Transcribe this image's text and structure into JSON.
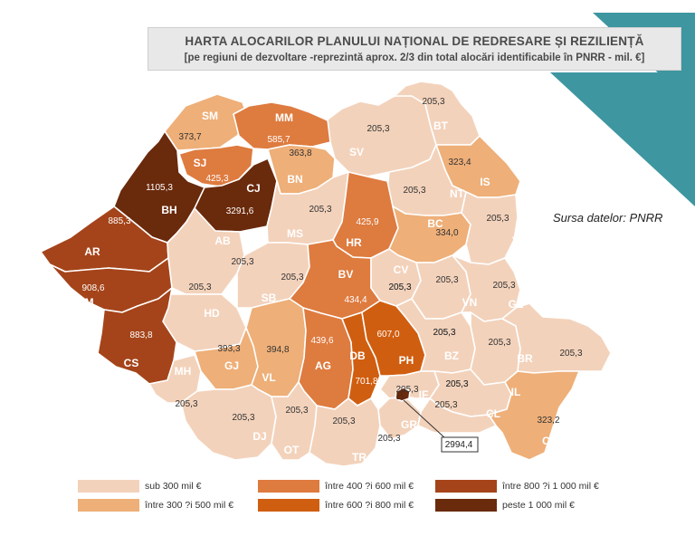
{
  "title": {
    "line1": "HARTA ALOCARILOR PLANULUI NAȚIONAL DE REDRESARE ȘI REZILIENȚĂ",
    "line2": "[pe regiuni de dezvoltare -reprezintă aprox. 2/3 din total alocări identificabile în PNRR - mil. €]"
  },
  "source": "Sursa datelor: PNRR",
  "colors": {
    "sub300": "#f3d2bb",
    "r300_500": "#eeaf78",
    "r400_600": "#de7b3f",
    "r600_800": "#d05e10",
    "r800_1000": "#a5441a",
    "peste1000": "#6a2a0c",
    "teal": "#3e96a0",
    "border": "#ffffff"
  },
  "legend": [
    {
      "label": "sub 300 mil €",
      "color_key": "sub300"
    },
    {
      "label": "între 300 ?i 500 mil €",
      "color_key": "r300_500"
    },
    {
      "label": "între 400 ?i 600 mil €",
      "color_key": "r400_600"
    },
    {
      "label": "între 600 ?i 800 mil €",
      "color_key": "r600_800"
    },
    {
      "label": "între 800 ?i 1 000 mil €",
      "color_key": "r800_1000"
    },
    {
      "label": "peste 1 000 mil €",
      "color_key": "peste1000"
    }
  ],
  "counties": [
    {
      "code": "SM",
      "value": "373,7",
      "color_key": "r300_500"
    },
    {
      "code": "MM",
      "value": "585,7",
      "color_key": "r400_600"
    },
    {
      "code": "SJ",
      "value": "425,3",
      "color_key": "r400_600"
    },
    {
      "code": "CJ",
      "value": "3291,6",
      "color_key": "peste1000"
    },
    {
      "code": "BH",
      "value": "1105,3",
      "color_key": "peste1000"
    },
    {
      "code": "BN",
      "value": "363,8",
      "color_key": "r300_500"
    },
    {
      "code": "SV",
      "value": "205,3",
      "color_key": "sub300"
    },
    {
      "code": "BT",
      "value": "205,3",
      "color_key": "sub300"
    },
    {
      "code": "IS",
      "value": "323,4",
      "color_key": "r300_500"
    },
    {
      "code": "NT",
      "value": "205,3",
      "color_key": "sub300"
    },
    {
      "code": "MS",
      "value": "205,3",
      "color_key": "sub300"
    },
    {
      "code": "HR",
      "value": "425,9",
      "color_key": "r400_600"
    },
    {
      "code": "BC",
      "value": "334,0",
      "color_key": "r300_500"
    },
    {
      "code": "VS",
      "value": "205,3",
      "color_key": "sub300"
    },
    {
      "code": "AR",
      "value": "885,3",
      "color_key": "r800_1000"
    },
    {
      "code": "AB",
      "value": "205,3",
      "color_key": "sub300"
    },
    {
      "code": "TM",
      "value": "908,6",
      "color_key": "r800_1000"
    },
    {
      "code": "HD",
      "value": "205,3",
      "color_key": "sub300"
    },
    {
      "code": "SB",
      "value": "205,3",
      "color_key": "sub300"
    },
    {
      "code": "BV",
      "value": "434,4",
      "color_key": "r400_600"
    },
    {
      "code": "CV",
      "value": "205,3",
      "color_key": "sub300"
    },
    {
      "code": "VN",
      "value": "205,3",
      "color_key": "sub300"
    },
    {
      "code": "GL",
      "value": "205,3",
      "color_key": "sub300"
    },
    {
      "code": "CS",
      "value": "883,8",
      "color_key": "r800_1000"
    },
    {
      "code": "MH",
      "value": "205,3",
      "color_key": "sub300"
    },
    {
      "code": "GJ",
      "value": "393,3",
      "color_key": "r300_500"
    },
    {
      "code": "VL",
      "value": "394,8",
      "color_key": "r300_500"
    },
    {
      "code": "AG",
      "value": "439,6",
      "color_key": "r400_600"
    },
    {
      "code": "DB",
      "value": "701,8",
      "color_key": "r600_800"
    },
    {
      "code": "PH",
      "value": "607,0",
      "color_key": "r600_800"
    },
    {
      "code": "BZ",
      "value": "205,3",
      "color_key": "sub300"
    },
    {
      "code": "BR",
      "value": "205,3",
      "color_key": "sub300"
    },
    {
      "code": "TL",
      "value": "205,3",
      "color_key": "sub300"
    },
    {
      "code": "DJ",
      "value": "205,3",
      "color_key": "sub300"
    },
    {
      "code": "OT",
      "value": "205,3",
      "color_key": "sub300"
    },
    {
      "code": "TR",
      "value": "205,3",
      "color_key": "sub300"
    },
    {
      "code": "GR",
      "value": "205,3",
      "color_key": "sub300"
    },
    {
      "code": "IF",
      "value": "205,3",
      "color_key": "sub300"
    },
    {
      "code": "IL",
      "value": "205,3",
      "color_key": "sub300"
    },
    {
      "code": "CL",
      "value": "205,3",
      "color_key": "sub300"
    },
    {
      "code": "CT",
      "value": "323,2",
      "color_key": "r300_500"
    },
    {
      "code": "B",
      "value": "2994,4",
      "color_key": "peste1000"
    }
  ],
  "unlabeled_values": [
    {
      "value": "205,3",
      "near": "CV"
    },
    {
      "value": "205,3",
      "near": "BZ"
    },
    {
      "value": "205,3",
      "near": "IL"
    }
  ]
}
